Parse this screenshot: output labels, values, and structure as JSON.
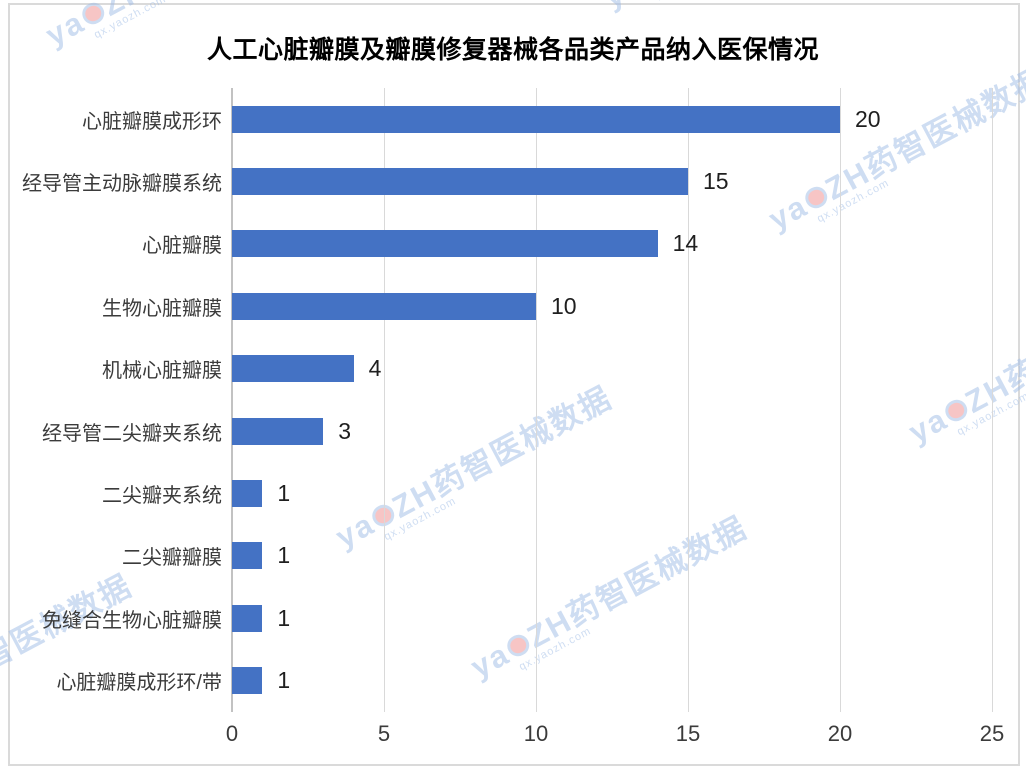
{
  "watermark": {
    "brand_prefix": "ya",
    "brand_suffix": "ZH药智医械数据",
    "url": "qx.yaozh.com"
  },
  "chart_data": {
    "type": "bar",
    "orientation": "horizontal",
    "title": "人工心脏瓣膜及瓣膜修复器械各品类产品纳入医保情况",
    "categories": [
      "心脏瓣膜成形环",
      "经导管主动脉瓣膜系统",
      "心脏瓣膜",
      "生物心脏瓣膜",
      "机械心脏瓣膜",
      "经导管二尖瓣夹系统",
      "二尖瓣夹系统",
      "二尖瓣瓣膜",
      "免缝合生物心脏瓣膜",
      "心脏瓣膜成形环/带"
    ],
    "values": [
      20,
      15,
      14,
      10,
      4,
      3,
      1,
      1,
      1,
      1
    ],
    "x_ticks": [
      0,
      5,
      10,
      15,
      20,
      25
    ],
    "xlim": [
      0,
      25
    ],
    "bar_color": "#4472C4",
    "gridline_color": "#D9D9D9",
    "grid": true,
    "value_labels": true,
    "legend": "none"
  }
}
